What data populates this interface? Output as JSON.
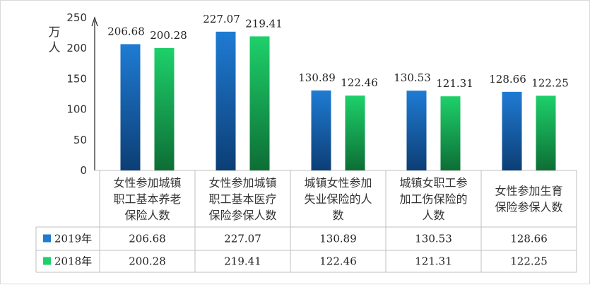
{
  "chart_data": {
    "type": "bar",
    "ylabel": "万人",
    "ylim": [
      0,
      250
    ],
    "yticks": [
      0,
      50,
      100,
      150,
      200,
      250
    ],
    "grid": false,
    "legend": "table-left",
    "categories": [
      [
        "女性参加城镇",
        "职工基本养老",
        "保险人数"
      ],
      [
        "女性参加城镇",
        "职工基本医疗",
        "保险参保人数"
      ],
      [
        "城镇女性参加",
        "失业保险的人",
        "数"
      ],
      [
        "城镇女职工参",
        "加工伤保险的",
        "人数"
      ],
      [
        "女性参加生育",
        "保险参保人数"
      ]
    ],
    "series": [
      {
        "name": "2019年",
        "values": [
          206.68,
          227.07,
          130.89,
          130.53,
          128.66
        ],
        "value_labels": [
          "206.68",
          "227.07",
          "130.89",
          "130.53",
          "128.66"
        ],
        "color": "#1f7bd3",
        "color_dark": "#0c3e75"
      },
      {
        "name": "2018年",
        "values": [
          200.28,
          219.41,
          122.46,
          121.31,
          122.25
        ],
        "value_labels": [
          "200.28",
          "219.41",
          "122.46",
          "121.31",
          "122.25"
        ],
        "color": "#1ed06a",
        "color_dark": "#0d6e35"
      }
    ]
  }
}
